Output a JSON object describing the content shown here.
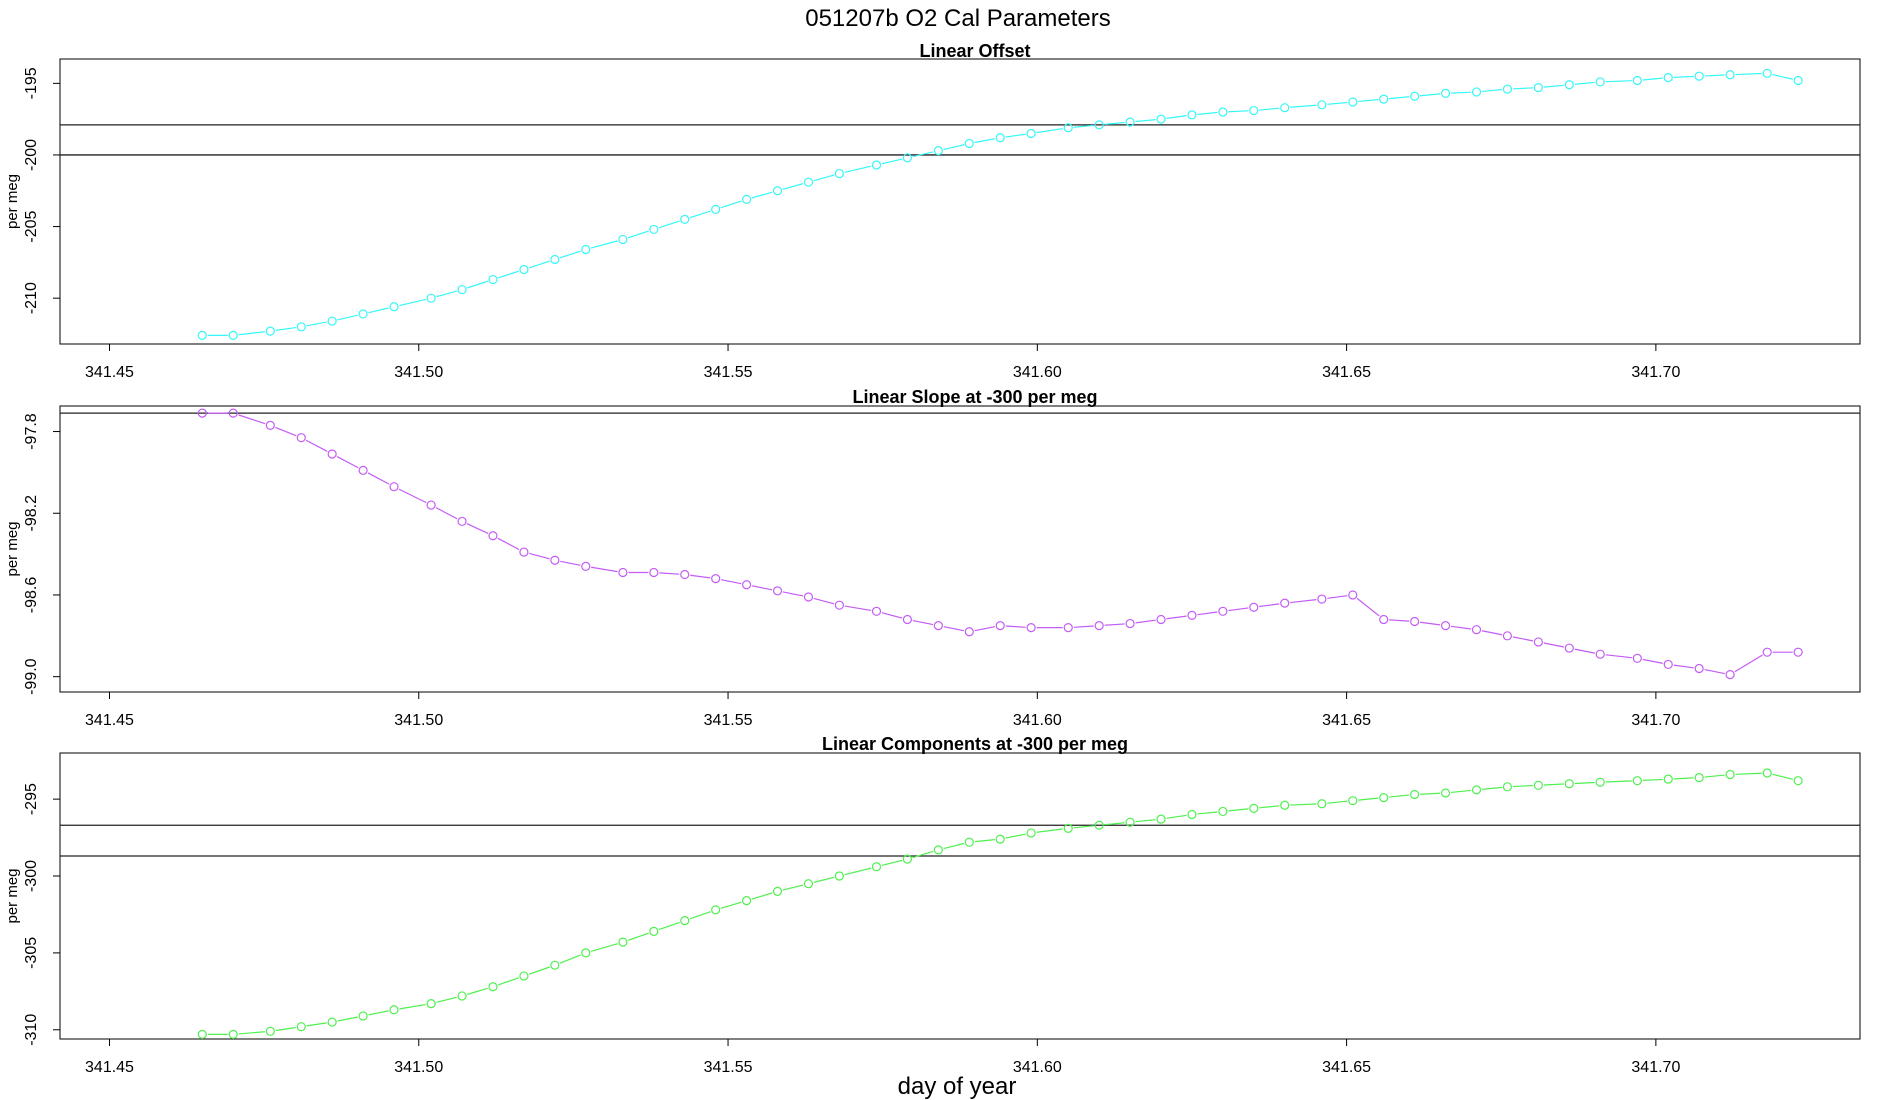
{
  "figure": {
    "title": "051207b   O2 Cal Parameters",
    "xlabel": "day of year"
  },
  "chart_data": [
    {
      "type": "line",
      "title": "Linear Offset",
      "ylabel": "per meg",
      "xlim": [
        341.442,
        341.733
      ],
      "ylim": [
        -213.2,
        -193.3
      ],
      "x_ticks": [
        "341.45",
        "341.50",
        "341.55",
        "341.60",
        "341.65",
        "341.70"
      ],
      "y_ticks": [
        "-195",
        "-200",
        "-205",
        "-210"
      ],
      "ref_lines": [
        -197.9,
        -200.0
      ],
      "color": "#36f7f7",
      "series": [
        {
          "x": [
            341.465,
            341.47,
            341.476,
            341.481,
            341.486,
            341.491,
            341.496,
            341.502,
            341.507,
            341.512,
            341.517,
            341.522,
            341.527,
            341.533,
            341.538,
            341.543,
            341.548,
            341.553,
            341.558,
            341.563,
            341.568,
            341.574,
            341.579,
            341.584,
            341.589,
            341.594,
            341.599,
            341.605,
            341.61,
            341.615,
            341.62,
            341.625,
            341.63,
            341.635,
            341.64,
            341.646,
            341.651,
            341.656,
            341.661,
            341.666,
            341.671,
            341.676,
            341.681,
            341.686,
            341.691,
            341.697,
            341.702,
            341.707,
            341.712,
            341.718,
            341.723
          ],
          "y": [
            -212.6,
            -212.6,
            -212.3,
            -212.0,
            -211.6,
            -211.1,
            -210.6,
            -210.0,
            -209.4,
            -208.7,
            -208.0,
            -207.3,
            -206.6,
            -205.9,
            -205.2,
            -204.5,
            -203.8,
            -203.1,
            -202.5,
            -201.9,
            -201.3,
            -200.7,
            -200.2,
            -199.7,
            -199.2,
            -198.8,
            -198.5,
            -198.1,
            -197.9,
            -197.7,
            -197.5,
            -197.2,
            -197.0,
            -196.9,
            -196.7,
            -196.5,
            -196.3,
            -196.1,
            -195.9,
            -195.7,
            -195.6,
            -195.4,
            -195.3,
            -195.1,
            -194.9,
            -194.8,
            -194.6,
            -194.5,
            -194.4,
            -194.3,
            -194.8
          ]
        }
      ]
    },
    {
      "type": "line",
      "title": "Linear Slope at -300 per meg",
      "ylabel": "per meg",
      "xlim": [
        341.442,
        341.733
      ],
      "ylim": [
        -99.075,
        -97.675
      ],
      "x_ticks": [
        "341.45",
        "341.50",
        "341.55",
        "341.60",
        "341.65",
        "341.70"
      ],
      "y_ticks": [
        "-97.8",
        "-98.2",
        "-98.6",
        "-99.0"
      ],
      "ref_lines": [
        -97.71
      ],
      "color": "#c45cf5",
      "series": [
        {
          "x": [
            341.465,
            341.47,
            341.476,
            341.481,
            341.486,
            341.491,
            341.496,
            341.502,
            341.507,
            341.512,
            341.517,
            341.522,
            341.527,
            341.533,
            341.538,
            341.543,
            341.548,
            341.553,
            341.558,
            341.563,
            341.568,
            341.574,
            341.579,
            341.584,
            341.589,
            341.594,
            341.599,
            341.605,
            341.61,
            341.615,
            341.62,
            341.625,
            341.63,
            341.635,
            341.64,
            341.646,
            341.651,
            341.656,
            341.661,
            341.666,
            341.671,
            341.676,
            341.681,
            341.686,
            341.691,
            341.697,
            341.702,
            341.707,
            341.712,
            341.718,
            341.723
          ],
          "y": [
            -97.71,
            -97.71,
            -97.77,
            -97.83,
            -97.91,
            -97.99,
            -98.07,
            -98.16,
            -98.24,
            -98.31,
            -98.39,
            -98.43,
            -98.46,
            -98.49,
            -98.49,
            -98.5,
            -98.52,
            -98.55,
            -98.58,
            -98.61,
            -98.65,
            -98.68,
            -98.72,
            -98.75,
            -98.78,
            -98.75,
            -98.76,
            -98.76,
            -98.75,
            -98.74,
            -98.72,
            -98.7,
            -98.68,
            -98.66,
            -98.64,
            -98.62,
            -98.6,
            -98.72,
            -98.73,
            -98.75,
            -98.77,
            -98.8,
            -98.83,
            -98.86,
            -98.89,
            -98.91,
            -98.94,
            -98.96,
            -98.99,
            -98.88,
            -98.88
          ]
        }
      ]
    },
    {
      "type": "line",
      "title": "Linear Components at -300 per meg",
      "ylabel": "per meg",
      "xlim": [
        341.442,
        341.733
      ],
      "ylim": [
        -310.6,
        -292.0
      ],
      "x_ticks": [
        "341.45",
        "341.50",
        "341.55",
        "341.60",
        "341.65",
        "341.70"
      ],
      "y_ticks": [
        "-295",
        "-300",
        "-305",
        "-310"
      ],
      "ref_lines": [
        -296.7,
        -298.7
      ],
      "color": "#4ef04e",
      "series": [
        {
          "x": [
            341.465,
            341.47,
            341.476,
            341.481,
            341.486,
            341.491,
            341.496,
            341.502,
            341.507,
            341.512,
            341.517,
            341.522,
            341.527,
            341.533,
            341.538,
            341.543,
            341.548,
            341.553,
            341.558,
            341.563,
            341.568,
            341.574,
            341.579,
            341.584,
            341.589,
            341.594,
            341.599,
            341.605,
            341.61,
            341.615,
            341.62,
            341.625,
            341.63,
            341.635,
            341.64,
            341.646,
            341.651,
            341.656,
            341.661,
            341.666,
            341.671,
            341.676,
            341.681,
            341.686,
            341.691,
            341.697,
            341.702,
            341.707,
            341.712,
            341.718,
            341.723
          ],
          "y": [
            -310.3,
            -310.3,
            -310.1,
            -309.8,
            -309.5,
            -309.1,
            -308.7,
            -308.3,
            -307.8,
            -307.2,
            -306.5,
            -305.8,
            -305.0,
            -304.3,
            -303.6,
            -302.9,
            -302.2,
            -301.6,
            -301.0,
            -300.5,
            -300.0,
            -299.4,
            -298.9,
            -298.3,
            -297.8,
            -297.6,
            -297.2,
            -296.9,
            -296.7,
            -296.5,
            -296.3,
            -296.0,
            -295.8,
            -295.6,
            -295.4,
            -295.3,
            -295.1,
            -294.9,
            -294.7,
            -294.6,
            -294.4,
            -294.2,
            -294.1,
            -294.0,
            -293.9,
            -293.8,
            -293.7,
            -293.6,
            -293.4,
            -293.3,
            -293.8
          ]
        }
      ]
    }
  ]
}
